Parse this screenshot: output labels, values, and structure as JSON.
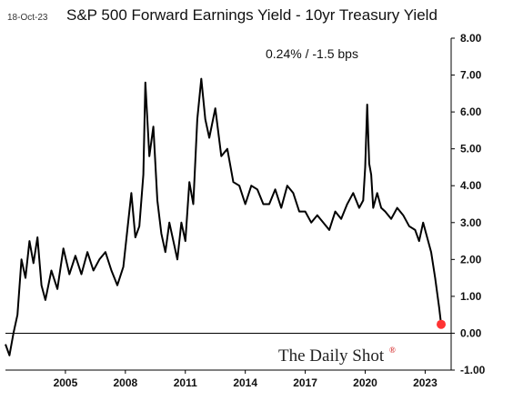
{
  "header": {
    "date": "18-Oct-23",
    "title": "S&P 500 Forward Earnings Yield - 10yr Treasury Yield"
  },
  "annotation": "0.24%  /  -1.5 bps",
  "branding": {
    "name": "The Daily Shot",
    "mark": "®"
  },
  "colors": {
    "line": "#000000",
    "endpoint": "#ff3333",
    "zero_line": "#000000",
    "axis": "#000000"
  },
  "chart_data": {
    "type": "line",
    "title": "S&P 500 Forward Earnings Yield - 10yr Treasury Yield",
    "ylim": [
      -1.0,
      8.0
    ],
    "xlim": [
      2002.0,
      2024.3
    ],
    "y_ticks": [
      8.0,
      7.0,
      6.0,
      5.0,
      4.0,
      3.0,
      2.0,
      1.0,
      0.0,
      -1.0
    ],
    "y_tick_labels": [
      "8.00",
      "7.00",
      "6.00",
      "5.00",
      "4.00",
      "3.00",
      "2.00",
      "1.00",
      "0.00",
      "-1.00"
    ],
    "x_ticks": [
      2005,
      2008,
      2011,
      2014,
      2017,
      2020,
      2023
    ],
    "x_tick_labels": [
      "2005",
      "2008",
      "2011",
      "2014",
      "2017",
      "2020",
      "2023"
    ],
    "grid": false,
    "series": [
      {
        "x": [
          2002.0,
          2002.2,
          2002.4,
          2002.6,
          2002.8,
          2003.0,
          2003.2,
          2003.4,
          2003.6,
          2003.8,
          2004.0,
          2004.3,
          2004.6,
          2004.9,
          2005.2,
          2005.5,
          2005.8,
          2006.1,
          2006.4,
          2006.7,
          2007.0,
          2007.3,
          2007.6,
          2007.9,
          2008.1,
          2008.3,
          2008.5,
          2008.7,
          2008.9,
          2009.0,
          2009.2,
          2009.4,
          2009.6,
          2009.8,
          2010.0,
          2010.2,
          2010.4,
          2010.6,
          2010.8,
          2011.0,
          2011.2,
          2011.4,
          2011.6,
          2011.8,
          2012.0,
          2012.2,
          2012.5,
          2012.8,
          2013.1,
          2013.4,
          2013.7,
          2014.0,
          2014.3,
          2014.6,
          2014.9,
          2015.2,
          2015.5,
          2015.8,
          2016.1,
          2016.4,
          2016.7,
          2017.0,
          2017.3,
          2017.6,
          2017.9,
          2018.2,
          2018.5,
          2018.8,
          2019.1,
          2019.4,
          2019.7,
          2019.9,
          2020.0,
          2020.1,
          2020.2,
          2020.3,
          2020.4,
          2020.6,
          2020.8,
          2021.0,
          2021.3,
          2021.6,
          2021.9,
          2022.2,
          2022.5,
          2022.7,
          2022.9,
          2023.1,
          2023.3,
          2023.5,
          2023.7,
          2023.8
        ],
        "y": [
          -0.3,
          -0.6,
          0.0,
          0.5,
          2.0,
          1.5,
          2.5,
          1.9,
          2.6,
          1.3,
          0.9,
          1.7,
          1.2,
          2.3,
          1.6,
          2.1,
          1.6,
          2.2,
          1.7,
          2.0,
          2.2,
          1.7,
          1.3,
          1.8,
          2.8,
          3.8,
          2.6,
          2.9,
          4.3,
          6.8,
          4.8,
          5.6,
          3.6,
          2.7,
          2.2,
          3.0,
          2.5,
          2.0,
          3.0,
          2.5,
          4.1,
          3.5,
          5.8,
          6.9,
          5.8,
          5.3,
          6.1,
          4.8,
          5.0,
          4.1,
          4.0,
          3.5,
          4.0,
          3.9,
          3.5,
          3.5,
          3.9,
          3.4,
          4.0,
          3.8,
          3.3,
          3.3,
          3.0,
          3.2,
          3.0,
          2.8,
          3.3,
          3.1,
          3.5,
          3.8,
          3.4,
          3.6,
          4.5,
          6.2,
          4.6,
          4.3,
          3.4,
          3.8,
          3.4,
          3.3,
          3.1,
          3.4,
          3.2,
          2.9,
          2.8,
          2.5,
          3.0,
          2.6,
          2.2,
          1.5,
          0.7,
          0.24
        ]
      }
    ],
    "endpoint": {
      "x": 2023.8,
      "y": 0.24
    }
  }
}
